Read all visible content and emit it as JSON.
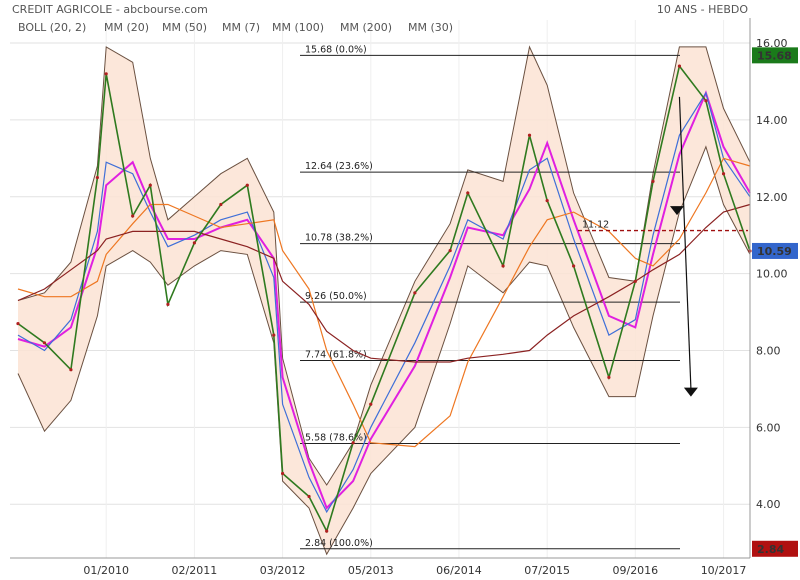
{
  "header": {
    "title": "CREDIT AGRICOLE - abcbourse.com",
    "period": "10 ANS - HEBDO"
  },
  "legend": [
    {
      "label": "BOLL (20, 2)",
      "color": "#555555"
    },
    {
      "label": "MM (20)",
      "color": "#3f6fd8"
    },
    {
      "label": "MM (50)",
      "color": "#e0302a"
    },
    {
      "label": "MM (7)",
      "color": "#2a9a2a"
    },
    {
      "label": "MM (100)",
      "color": "#ee7722"
    },
    {
      "label": "MM (200)",
      "color": "#8b2222"
    },
    {
      "label": "MM (30)",
      "color": "#e020e0"
    }
  ],
  "chart_data": {
    "type": "line",
    "title": "CREDIT AGRICOLE - abcbourse.com",
    "subtitle": "10 ANS - HEBDO",
    "x_ticks": [
      "01/2010",
      "02/2011",
      "03/2012",
      "05/2013",
      "06/2014",
      "07/2015",
      "09/2016",
      "10/2017"
    ],
    "y_ticks": [
      "16.00",
      "14.00",
      "12.00",
      "10.00",
      "8.00",
      "6.00",
      "4.00"
    ],
    "y_tick_values": [
      16,
      14,
      12,
      10,
      8,
      6,
      4
    ],
    "ylim": [
      2.6,
      16.6
    ],
    "price_series_x": [
      0,
      0.3,
      0.6,
      0.9,
      1.0,
      1.3,
      1.5,
      1.7,
      2.0,
      2.3,
      2.6,
      2.9,
      3.0,
      3.3,
      3.5,
      3.8,
      4.0,
      4.5,
      4.9,
      5.1,
      5.5,
      5.8,
      6.0,
      6.3,
      6.7,
      7.0,
      7.2,
      7.5,
      7.8,
      8.0,
      8.3
    ],
    "price_series_y": [
      8.7,
      8.2,
      7.5,
      12.5,
      15.2,
      11.5,
      12.3,
      9.2,
      10.8,
      11.8,
      12.3,
      8.4,
      4.8,
      4.2,
      3.3,
      5.6,
      6.6,
      9.5,
      10.6,
      12.1,
      10.2,
      13.6,
      11.9,
      10.2,
      7.3,
      9.8,
      12.4,
      15.4,
      14.5,
      12.6,
      10.59
    ],
    "series": [
      {
        "name": "MM (30)",
        "color": "#e020e0",
        "y": [
          8.3,
          8.1,
          8.6,
          10.7,
          12.3,
          12.9,
          11.8,
          10.9,
          10.9,
          11.2,
          11.4,
          10.4,
          7.3,
          5.1,
          3.9,
          4.6,
          5.7,
          7.6,
          9.9,
          11.2,
          11.0,
          12.2,
          13.4,
          11.4,
          8.9,
          8.6,
          10.5,
          13.1,
          14.7,
          13.3,
          12.1
        ]
      },
      {
        "name": "MM (20)",
        "color": "#3f6fd8",
        "y": [
          8.4,
          8.0,
          8.8,
          11.1,
          12.9,
          12.6,
          11.6,
          10.7,
          11.0,
          11.4,
          11.6,
          9.9,
          6.6,
          4.7,
          3.8,
          4.9,
          6.0,
          8.2,
          10.2,
          11.4,
          10.9,
          12.7,
          13.0,
          10.9,
          8.4,
          8.8,
          11.0,
          13.6,
          14.7,
          13.0,
          12.0
        ]
      },
      {
        "name": "MM (100)",
        "color": "#ee7722",
        "y": [
          9.6,
          9.4,
          9.4,
          9.8,
          10.5,
          11.3,
          11.8,
          11.8,
          11.5,
          11.2,
          11.3,
          11.4,
          10.6,
          9.6,
          8.0,
          6.6,
          5.6,
          5.5,
          6.3,
          7.7,
          9.4,
          10.7,
          11.4,
          11.6,
          11.1,
          10.4,
          10.2,
          10.9,
          12.1,
          13.0,
          12.8
        ]
      },
      {
        "name": "MM (200)",
        "color": "#8b2222",
        "y": [
          9.3,
          9.6,
          10.1,
          10.6,
          10.9,
          11.1,
          11.1,
          11.1,
          11.1,
          10.9,
          10.7,
          10.4,
          9.8,
          9.2,
          8.5,
          8.0,
          7.8,
          7.7,
          7.7,
          7.8,
          7.9,
          8.0,
          8.4,
          8.9,
          9.4,
          9.8,
          10.1,
          10.5,
          11.2,
          11.6,
          11.8
        ]
      }
    ],
    "bollinger": {
      "upper": [
        9.3,
        9.5,
        10.3,
        12.8,
        15.9,
        15.5,
        13.0,
        11.4,
        12.0,
        12.6,
        13.0,
        11.6,
        7.8,
        5.2,
        4.5,
        5.6,
        7.1,
        9.8,
        11.3,
        12.7,
        12.4,
        15.9,
        14.9,
        12.1,
        9.9,
        9.8,
        12.6,
        15.9,
        15.9,
        14.3,
        12.9
      ],
      "lower": [
        7.4,
        5.9,
        6.7,
        8.9,
        10.2,
        10.6,
        10.3,
        9.7,
        10.2,
        10.6,
        10.5,
        8.2,
        4.6,
        3.9,
        2.7,
        3.9,
        4.8,
        6.0,
        8.7,
        10.2,
        9.5,
        10.3,
        10.2,
        8.6,
        6.8,
        6.8,
        8.9,
        11.6,
        13.3,
        11.8,
        10.5
      ]
    },
    "fibonacci": [
      {
        "label": "15.68  (0.0%)",
        "value": 15.68
      },
      {
        "label": "12.64  (23.6%)",
        "value": 12.64
      },
      {
        "label": "10.78  (38.2%)",
        "value": 10.78
      },
      {
        "label": "9.26  (50.0%)",
        "value": 9.26
      },
      {
        "label": "7.74  (61.8%)",
        "value": 7.74
      },
      {
        "label": "5.58  (78.6%)",
        "value": 5.58
      },
      {
        "label": "2.84  (100.0%)",
        "value": 2.84
      }
    ],
    "support_line": {
      "label": "11.12",
      "value": 11.12
    },
    "price_tags": [
      {
        "label": "15.68",
        "value": 15.68,
        "color": "#1a7a1a"
      },
      {
        "label": "10.59",
        "value": 10.59,
        "color": "#3366cc"
      },
      {
        "label": "2.84",
        "value": 2.84,
        "color": "#b01010"
      }
    ],
    "projection_arrows": [
      {
        "x0": 7.5,
        "y0": 14.6,
        "x1": 7.63,
        "y1": 6.8
      }
    ]
  }
}
